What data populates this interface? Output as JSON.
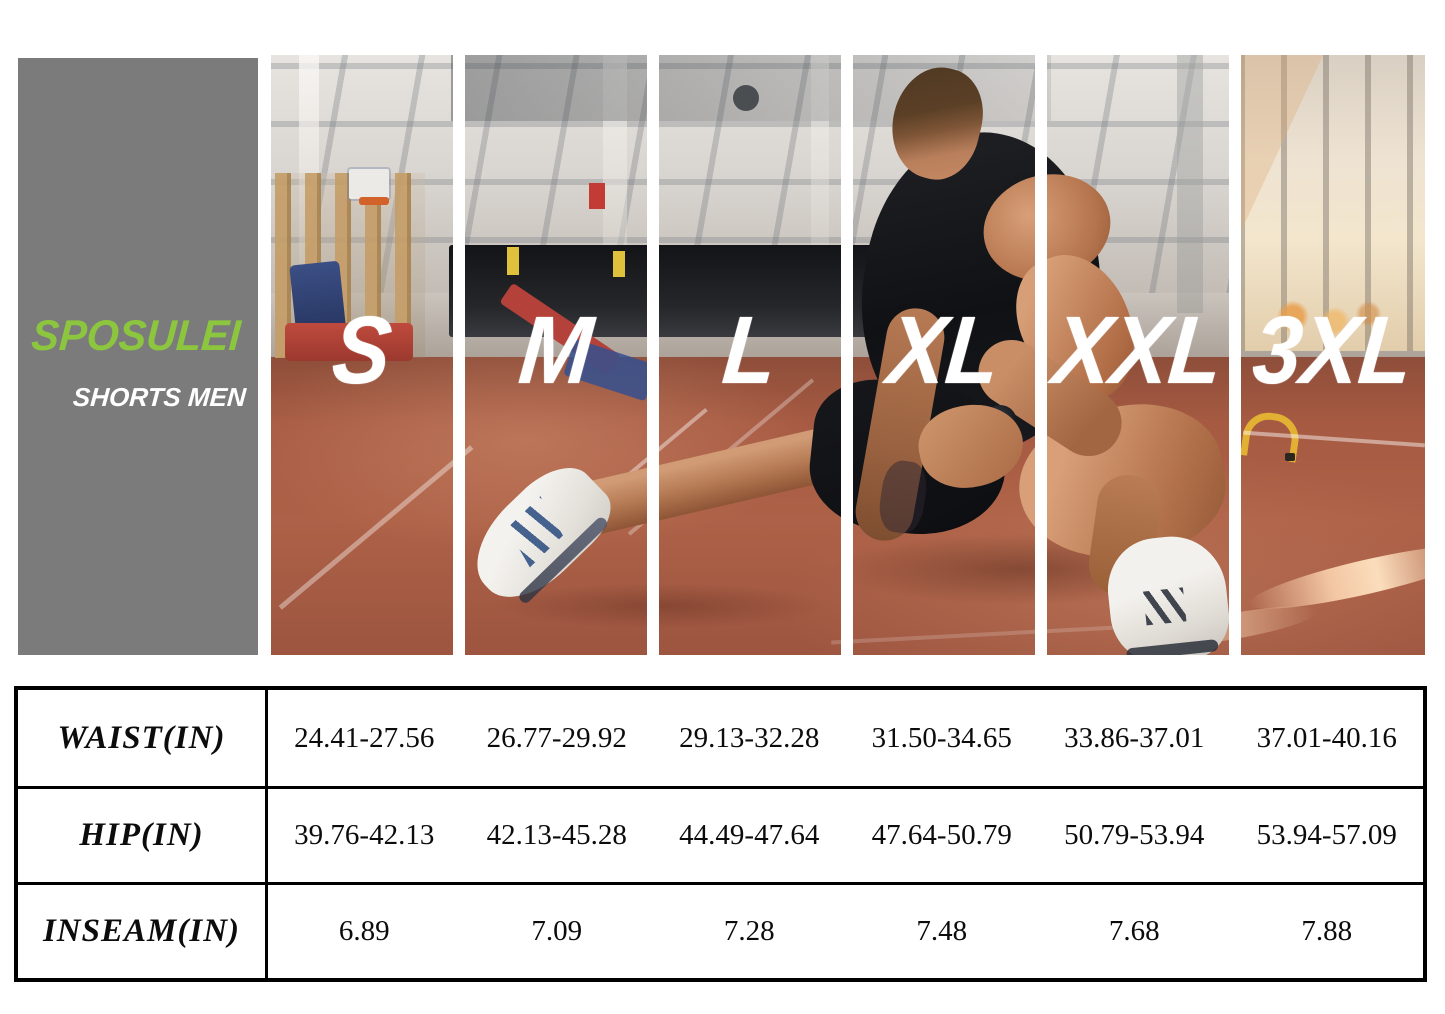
{
  "brand": {
    "name": "SPOSULEI",
    "subtitle": "SHORTS MEN"
  },
  "chart_data": {
    "type": "table",
    "title": "SPOSULEI SHORTS MEN size chart",
    "columns": [
      "S",
      "M",
      "L",
      "XL",
      "XXL",
      "3XL"
    ],
    "rows": [
      {
        "label": "WAIST(IN)",
        "values": [
          "24.41-27.56",
          "26.77-29.92",
          "29.13-32.28",
          "31.50-34.65",
          "33.86-37.01",
          "37.01-40.16"
        ]
      },
      {
        "label": "HIP(IN)",
        "values": [
          "39.76-42.13",
          "42.13-45.28",
          "44.49-47.64",
          "47.64-50.79",
          "50.79-53.94",
          "53.94-57.09"
        ]
      },
      {
        "label": "INSEAM(IN)",
        "values": [
          "6.89",
          "7.09",
          "7.28",
          "7.48",
          "7.68",
          "7.88"
        ]
      }
    ]
  },
  "colors": {
    "brand_green": "#8CC63F",
    "panel_gray": "#7B7B7B",
    "track_brown": "#A65A42",
    "size_label": "#FFFFFF",
    "table_border": "#000000"
  }
}
